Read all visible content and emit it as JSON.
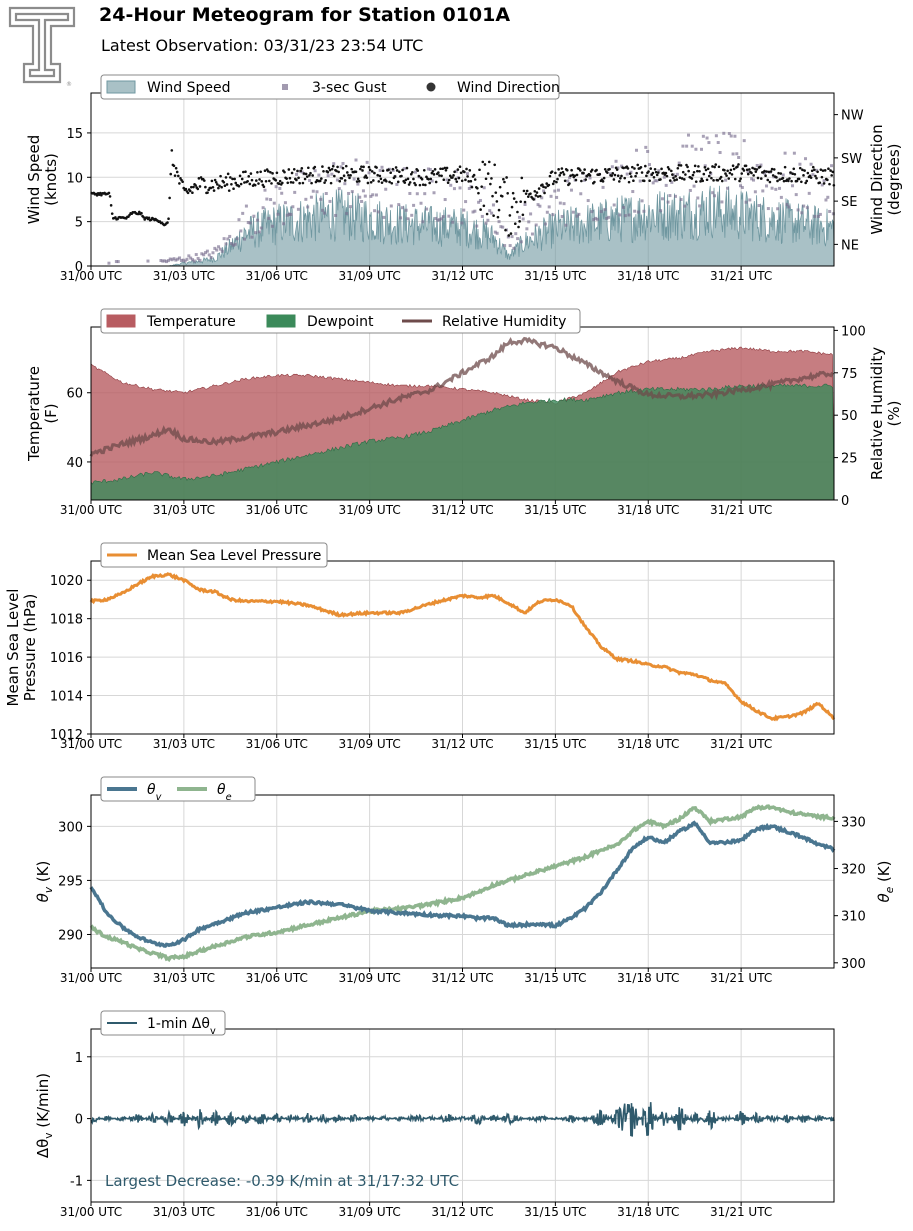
{
  "header": {
    "title": "24-Hour Meteogram for Station 0101A",
    "subtitle": "Latest Observation: 03/31/23 23:54 UTC"
  },
  "colors": {
    "wind_speed": "#6f97a0",
    "gust": "#7a6f8f",
    "wind_direction": "#111111",
    "temperature": "#b85c61",
    "dewpoint": "#3b8a5a",
    "relative_humidity": "#6e4b4b",
    "pressure": "#e88e33",
    "theta_v": "#4a7690",
    "theta_e": "#8fb58f",
    "delta_theta_v": "#2f5a6c",
    "grid": "#d7d7d7"
  },
  "icons": {
    "logo": "tt-logo-icon"
  },
  "chart_data": [
    {
      "id": "wind",
      "type": "area",
      "x_ticks": [
        "31/00 UTC",
        "31/03 UTC",
        "31/06 UTC",
        "31/09 UTC",
        "31/12 UTC",
        "31/15 UTC",
        "31/18 UTC",
        "31/21 UTC"
      ],
      "xlim": [
        0,
        24
      ],
      "ylabel": [
        "Wind Speed",
        "(knots)"
      ],
      "ylim": [
        0,
        19.5
      ],
      "y_ticks": [
        0,
        5,
        10,
        15
      ],
      "y2label": [
        "Wind Direction",
        "(degrees)"
      ],
      "y2lim": [
        0,
        360
      ],
      "y2_ticks": [
        {
          "value": 45,
          "label": "NE"
        },
        {
          "value": 135,
          "label": "SE"
        },
        {
          "value": 225,
          "label": "SW"
        },
        {
          "value": 315,
          "label": "NW"
        }
      ],
      "legend": [
        "Wind Speed",
        "3-sec Gust",
        "Wind Direction"
      ],
      "legend_position": "top-left",
      "series": [
        {
          "name": "Wind Speed",
          "x": [
            0,
            1,
            2,
            2.5,
            3,
            3.5,
            4,
            4.5,
            5,
            6,
            7,
            8,
            9,
            10,
            11,
            12,
            13,
            13.5,
            14,
            15,
            16,
            17,
            18,
            19,
            20,
            21,
            22,
            23,
            24
          ],
          "values": [
            0,
            0,
            0,
            0,
            0.3,
            0.5,
            0.8,
            2,
            3.5,
            4.5,
            5,
            5.5,
            5,
            4.5,
            4.3,
            4.2,
            3,
            1,
            2.5,
            4,
            4.5,
            5,
            5.5,
            5.5,
            6,
            5.5,
            5,
            4.5,
            4
          ]
        },
        {
          "name": "3-sec Gust",
          "x": [
            0,
            1,
            2,
            2.5,
            3,
            3.5,
            4,
            4.5,
            5,
            6,
            7,
            8,
            9,
            10,
            11,
            12,
            13,
            13.5,
            14,
            15,
            16,
            17,
            18,
            19,
            20,
            21,
            22,
            23,
            24
          ],
          "values": [
            0.3,
            0.5,
            0.4,
            0.6,
            0.8,
            1,
            1.5,
            3,
            5,
            7,
            8,
            9,
            8.5,
            8,
            8,
            8,
            6,
            2.5,
            5,
            7,
            8,
            9,
            10,
            10.5,
            11,
            10.5,
            9.5,
            9,
            8
          ]
        },
        {
          "name": "Wind Direction",
          "x": [
            0,
            0.6,
            0.7,
            1.2,
            1.3,
            1.6,
            1.7,
            2.2,
            2.4,
            2.5,
            2.6,
            3,
            3.5,
            4,
            5,
            6,
            7,
            8,
            9,
            10,
            11,
            12,
            12.5,
            13,
            13.5,
            14,
            15,
            16,
            17,
            18,
            19,
            20,
            21,
            22,
            23,
            24
          ],
          "values": [
            150,
            150,
            100,
            100,
            110,
            110,
            100,
            95,
            85,
            90,
            225,
            150,
            170,
            170,
            180,
            185,
            190,
            190,
            190,
            188,
            185,
            190,
            175,
            160,
            120,
            140,
            185,
            188,
            190,
            195,
            192,
            193,
            195,
            192,
            190,
            185
          ]
        }
      ]
    },
    {
      "id": "temperature",
      "type": "area",
      "x_ticks": [
        "31/00 UTC",
        "31/03 UTC",
        "31/06 UTC",
        "31/09 UTC",
        "31/12 UTC",
        "31/15 UTC",
        "31/18 UTC",
        "31/21 UTC"
      ],
      "xlim": [
        0,
        24
      ],
      "ylabel": [
        "Temperature",
        "(F)"
      ],
      "ylim": [
        29,
        79
      ],
      "y_ticks": [
        40,
        60
      ],
      "y2label": [
        "Relative Humidity",
        "(%)"
      ],
      "y2lim": [
        0,
        102
      ],
      "y2_ticks": [
        0,
        25,
        50,
        75,
        100
      ],
      "legend": [
        "Temperature",
        "Dewpoint",
        "Relative Humidity"
      ],
      "legend_position": "top-left",
      "series": [
        {
          "name": "Temperature",
          "x": [
            0,
            1,
            2,
            3,
            4,
            5,
            6,
            7,
            8,
            9,
            10,
            11,
            12,
            13,
            14,
            15,
            16,
            17,
            18,
            19,
            20,
            21,
            22,
            23,
            24
          ],
          "values": [
            68,
            63,
            61,
            60,
            62,
            64,
            65,
            65,
            64,
            63,
            62,
            62,
            61,
            60,
            58,
            57,
            60,
            66,
            69,
            70,
            72,
            73,
            72,
            72,
            71
          ]
        },
        {
          "name": "Dewpoint",
          "x": [
            0,
            1,
            2,
            3,
            4,
            5,
            6,
            7,
            8,
            9,
            10,
            11,
            12,
            13,
            14,
            15,
            16,
            17,
            18,
            19,
            20,
            21,
            22,
            23,
            24
          ],
          "values": [
            34,
            35,
            37,
            35,
            36,
            38,
            40,
            42,
            44,
            46,
            47,
            49,
            52,
            55,
            57,
            58,
            58,
            60,
            61,
            61,
            61,
            62,
            62,
            62,
            62
          ]
        },
        {
          "name": "Relative Humidity",
          "x": [
            0,
            1,
            2,
            2.5,
            3,
            4,
            5,
            6,
            7,
            8,
            9,
            10,
            11,
            12,
            13,
            13.5,
            14,
            15,
            16,
            17,
            18,
            19,
            20,
            21,
            22,
            23,
            24
          ],
          "values": [
            27,
            33,
            38,
            42,
            36,
            34,
            37,
            40,
            44,
            48,
            54,
            60,
            65,
            75,
            85,
            93,
            94,
            90,
            80,
            70,
            62,
            61,
            62,
            65,
            68,
            72,
            75
          ]
        }
      ]
    },
    {
      "id": "pressure",
      "type": "line",
      "x_ticks": [
        "31/00 UTC",
        "31/03 UTC",
        "31/06 UTC",
        "31/09 UTC",
        "31/12 UTC",
        "31/15 UTC",
        "31/18 UTC",
        "31/21 UTC"
      ],
      "xlim": [
        0,
        24
      ],
      "ylabel": [
        "Mean Sea Level",
        "Pressure (hPa)"
      ],
      "ylim": [
        1012,
        1021
      ],
      "y_ticks": [
        1012,
        1014,
        1016,
        1018,
        1020
      ],
      "legend": [
        "Mean Sea Level Pressure"
      ],
      "legend_position": "top-left",
      "series": [
        {
          "name": "Mean Sea Level Pressure",
          "x": [
            0,
            0.5,
            1,
            1.5,
            2,
            2.5,
            3,
            3.5,
            4,
            4.5,
            5,
            6,
            7,
            8,
            9,
            10,
            11,
            12,
            12.5,
            13,
            13.5,
            14,
            14.5,
            15,
            15.5,
            16,
            16.5,
            17,
            17.5,
            18,
            18.5,
            19,
            19.5,
            20,
            20.5,
            21,
            21.5,
            22,
            22.5,
            23,
            23.5,
            24
          ],
          "values": [
            1018.9,
            1019,
            1019.3,
            1019.8,
            1020.2,
            1020.3,
            1020,
            1019.5,
            1019.4,
            1019,
            1018.9,
            1018.9,
            1018.7,
            1018.2,
            1018.3,
            1018.3,
            1018.8,
            1019.2,
            1019.1,
            1019.2,
            1018.8,
            1018.3,
            1018.9,
            1019,
            1018.7,
            1017.5,
            1016.5,
            1015.9,
            1015.8,
            1015.6,
            1015.5,
            1015.2,
            1015.1,
            1014.8,
            1014.6,
            1013.7,
            1013.2,
            1012.8,
            1012.9,
            1013.1,
            1013.6,
            1012.8
          ]
        }
      ]
    },
    {
      "id": "theta",
      "type": "line",
      "x_ticks": [
        "31/00 UTC",
        "31/03 UTC",
        "31/06 UTC",
        "31/09 UTC",
        "31/12 UTC",
        "31/15 UTC",
        "31/18 UTC",
        "31/21 UTC"
      ],
      "xlim": [
        0,
        24
      ],
      "ylabel": "θv (K)",
      "ylim": [
        286.9,
        302.9
      ],
      "y_ticks": [
        290,
        295,
        300
      ],
      "y2label": "θe (K)",
      "y2lim": [
        298.9,
        335.6
      ],
      "y2_ticks": [
        300,
        310,
        320,
        330
      ],
      "legend": [
        "θv",
        "θe"
      ],
      "legend_position": "top-left",
      "series": [
        {
          "name": "θv",
          "axis": "left",
          "x": [
            0,
            0.5,
            1,
            1.5,
            2,
            2.5,
            3,
            3.5,
            4,
            4.5,
            5,
            6,
            7,
            8,
            9,
            10,
            11,
            12,
            12.5,
            13,
            13.5,
            14,
            14.5,
            15,
            15.5,
            16,
            16.5,
            17,
            17.5,
            18,
            18.5,
            19,
            19.5,
            20,
            20.5,
            21,
            21.5,
            22,
            22.5,
            23,
            23.5,
            24
          ],
          "values": [
            294.5,
            292,
            290.7,
            289.8,
            289.2,
            289,
            289.5,
            290.5,
            291,
            291.5,
            292,
            292.5,
            293,
            292.8,
            292.2,
            292,
            291.8,
            291.7,
            291.5,
            291.5,
            290.8,
            290.9,
            291,
            290.8,
            291.5,
            292.5,
            294,
            296,
            298,
            299,
            298.5,
            299.5,
            300.3,
            298.5,
            298.5,
            298.7,
            299.8,
            300,
            299.5,
            299,
            298.3,
            297.9
          ]
        },
        {
          "name": "θe",
          "axis": "right",
          "x": [
            0,
            0.5,
            1,
            1.5,
            2,
            2.5,
            3,
            3.5,
            4,
            4.5,
            5,
            6,
            7,
            8,
            9,
            10,
            11,
            12,
            12.5,
            13,
            13.5,
            14,
            14.5,
            15,
            15.5,
            16,
            16.5,
            17,
            17.5,
            18,
            18.5,
            19,
            19.5,
            20,
            20.5,
            21,
            21.5,
            22,
            22.5,
            23,
            23.5,
            24
          ],
          "values": [
            307.5,
            305.5,
            304.5,
            303,
            302,
            301,
            301.3,
            302.5,
            303.5,
            304.5,
            305.5,
            306.5,
            308,
            309.5,
            311,
            311.5,
            312.5,
            313.8,
            315,
            316.5,
            317.5,
            318.5,
            319.5,
            320.5,
            321.5,
            322.5,
            324,
            325,
            328,
            330,
            329,
            330.5,
            333,
            330,
            330.5,
            331,
            333,
            333,
            332,
            331.5,
            331,
            330.8
          ]
        }
      ]
    },
    {
      "id": "delta",
      "type": "line",
      "x_ticks": [
        "31/00 UTC",
        "31/03 UTC",
        "31/06 UTC",
        "31/09 UTC",
        "31/12 UTC",
        "31/15 UTC",
        "31/18 UTC",
        "31/21 UTC"
      ],
      "xlim": [
        0,
        24
      ],
      "ylabel": "Δθv (K/min)",
      "ylim": [
        -1.35,
        1.45
      ],
      "y_ticks": [
        -1,
        0,
        1
      ],
      "legend": [
        "1-min Δθv"
      ],
      "legend_position": "top-left",
      "annotation": "Largest Decrease: -0.39 K/min at 31/17:32 UTC",
      "series": [
        {
          "name": "1-min Δθv",
          "x": [
            0,
            0.5,
            1,
            1.5,
            2,
            2.5,
            3,
            3.5,
            4,
            4.5,
            5,
            5.5,
            6,
            6.5,
            7,
            7.5,
            8,
            8.5,
            9,
            9.5,
            10,
            10.5,
            11,
            11.5,
            12,
            12.5,
            13,
            13.5,
            14,
            14.5,
            15,
            15.5,
            16,
            16.5,
            17,
            17.5,
            18,
            18.5,
            19,
            19.5,
            20,
            20.5,
            21,
            21.5,
            22,
            22.5,
            23,
            23.5,
            24
          ],
          "values": [
            -0.1,
            0.05,
            -0.05,
            0.1,
            -0.1,
            0.15,
            -0.15,
            0.2,
            -0.15,
            0.15,
            -0.1,
            0.12,
            -0.1,
            0.1,
            -0.1,
            0.1,
            -0.08,
            0.08,
            -0.05,
            0.05,
            -0.05,
            0.1,
            -0.05,
            0.1,
            -0.05,
            0.12,
            -0.08,
            0.1,
            0,
            0.05,
            -0.03,
            0.08,
            -0.05,
            0.2,
            -0.2,
            -0.35,
            0.4,
            -0.2,
            0.25,
            -0.15,
            0.2,
            -0.1,
            0.15,
            -0.12,
            0.12,
            -0.1,
            0.1,
            -0.08,
            0.05
          ]
        }
      ]
    }
  ]
}
